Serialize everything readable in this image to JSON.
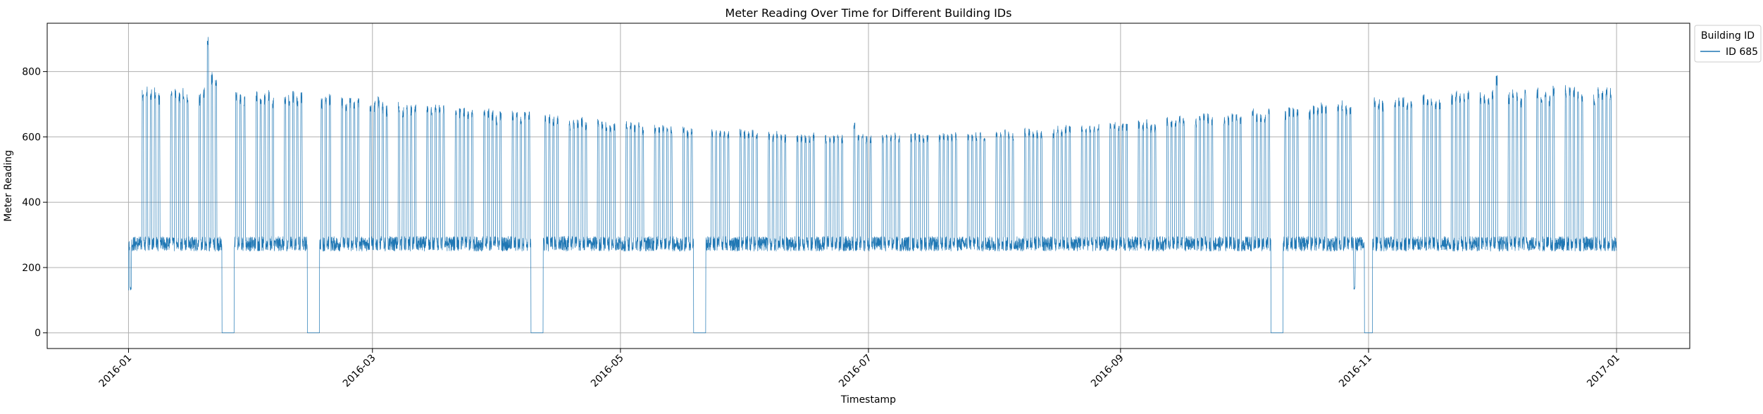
{
  "chart_data": {
    "type": "line",
    "title": "Meter Reading Over Time for Different Building IDs",
    "xlabel": "Timestamp",
    "ylabel": "Meter Reading",
    "x_type": "date",
    "xlim": [
      "2015-12-12",
      "2017-01-19"
    ],
    "ylim": [
      -48,
      948
    ],
    "x_ticks": [
      "2016-01",
      "2016-03",
      "2016-05",
      "2016-07",
      "2016-09",
      "2016-11",
      "2017-01"
    ],
    "y_ticks": [
      0,
      200,
      400,
      600,
      800
    ],
    "grid": true,
    "legend": {
      "title": "Building ID",
      "placement": "outside-top-right"
    },
    "series": [
      {
        "name": "ID 685",
        "color": "#1f77b4",
        "data_range": [
          "2016-01-01",
          "2016-12-31"
        ],
        "typical_weekday_peak_range": [
          530,
          790
        ],
        "typical_base_range": [
          230,
          360
        ],
        "max": [
          {
            "x": "2016-01-20",
            "y": 910
          }
        ],
        "notable_values": [
          {
            "x": "2016-01-01",
            "y": 130
          },
          {
            "x": "2016-01-21",
            "y": 800
          },
          {
            "x": "2016-01-22",
            "y": 780
          },
          {
            "x": "2016-06-27",
            "y": 650
          },
          {
            "x": "2016-10-28",
            "y": 130
          },
          {
            "x": "2016-11-26",
            "y": 785
          },
          {
            "x": "2016-12-02",
            "y": 790
          }
        ],
        "zero_periods": [
          [
            "2016-01-24",
            "2016-01-26"
          ],
          [
            "2016-02-14",
            "2016-02-16"
          ],
          [
            "2016-04-09",
            "2016-04-11"
          ],
          [
            "2016-05-19",
            "2016-05-21"
          ],
          [
            "2016-10-08",
            "2016-10-10"
          ],
          [
            "2016-10-31",
            "2016-11-01"
          ]
        ]
      }
    ]
  }
}
